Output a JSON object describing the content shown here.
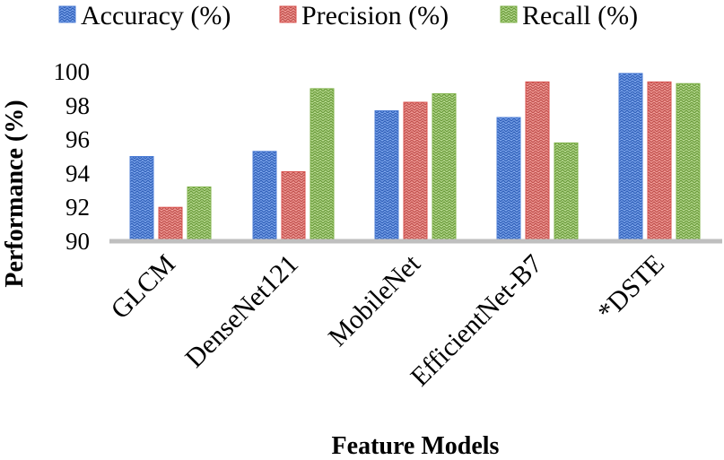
{
  "chart_data": {
    "type": "bar",
    "title": "",
    "xlabel": "Feature Models",
    "ylabel": "Performance (%)",
    "ylim": [
      90,
      100
    ],
    "yticks": [
      "90",
      "92",
      "94",
      "96",
      "98",
      "100"
    ],
    "categories": [
      "GLCM",
      "DenseNet121",
      "MobileNet",
      "EfficientNet-B7",
      "*DSTE"
    ],
    "series": [
      {
        "name": "Accuracy (%)",
        "color": "#4F7FD6",
        "values": [
          95.0,
          95.3,
          97.7,
          97.3,
          99.9
        ]
      },
      {
        "name": "Precision (%)",
        "color": "#D9534F",
        "values": [
          92.0,
          94.1,
          98.2,
          99.4,
          99.4
        ]
      },
      {
        "name": "Recall (%)",
        "color": "#7FB24A",
        "values": [
          93.2,
          99.0,
          98.7,
          95.8,
          99.3
        ]
      }
    ],
    "legend_position": "top",
    "grid": false
  }
}
